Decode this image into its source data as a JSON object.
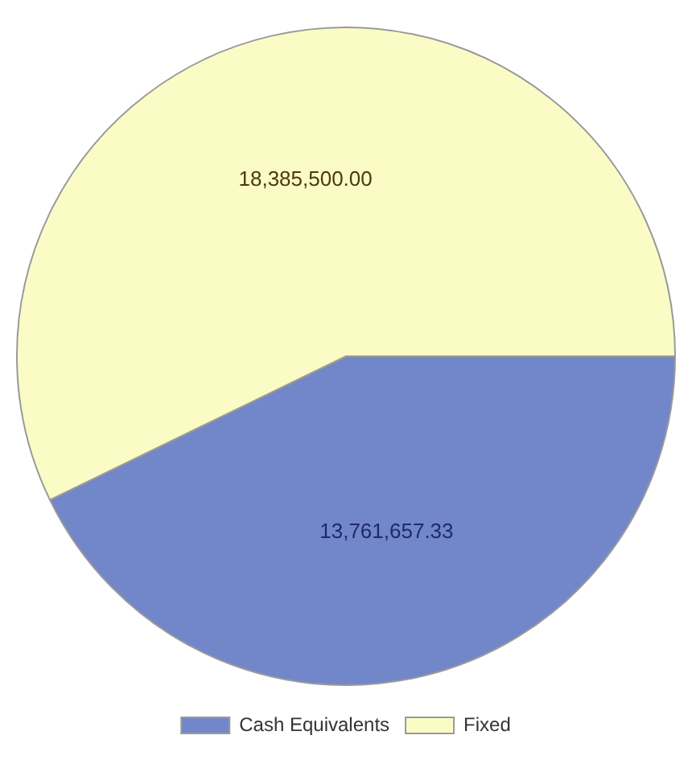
{
  "chart_data": {
    "type": "pie",
    "categories": [
      "Cash Equivalents",
      "Fixed"
    ],
    "values": [
      13761657.33,
      18385500.0
    ],
    "colors": [
      "#7287c9",
      "#fbfbc6"
    ],
    "value_labels": [
      "13,761,657.33",
      "18,385,500.00"
    ],
    "legend": "bottom"
  }
}
